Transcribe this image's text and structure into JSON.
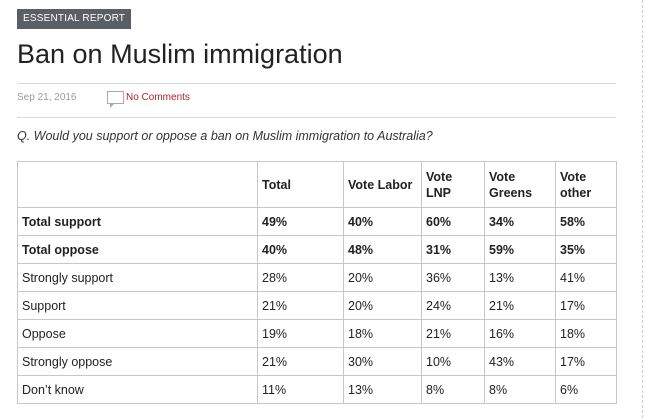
{
  "badge": "ESSENTIAL REPORT",
  "title": "Ban on Muslim immigration",
  "meta": {
    "date": "Sep 21, 2016",
    "comments": "No Comments"
  },
  "question": "Q. Would you support or oppose a ban on Muslim immigration to Australia?",
  "table": {
    "headers": [
      "",
      "Total",
      "Vote Labor",
      "Vote LNP",
      "Vote Greens",
      "Vote other"
    ],
    "rows": [
      {
        "label": "Total support",
        "values": [
          "49%",
          "40%",
          "60%",
          "34%",
          "58%"
        ]
      },
      {
        "label": "Total oppose",
        "values": [
          "40%",
          "48%",
          "31%",
          "59%",
          "35%"
        ]
      },
      {
        "label": "Strongly support",
        "values": [
          "28%",
          "20%",
          "36%",
          "13%",
          "41%"
        ]
      },
      {
        "label": "Support",
        "values": [
          "21%",
          "20%",
          "24%",
          "21%",
          "17%"
        ]
      },
      {
        "label": "Oppose",
        "values": [
          "19%",
          "18%",
          "21%",
          "16%",
          "18%"
        ]
      },
      {
        "label": "Strongly oppose",
        "values": [
          "21%",
          "30%",
          "10%",
          "43%",
          "17%"
        ]
      },
      {
        "label": "Don’t know",
        "values": [
          "11%",
          "13%",
          "8%",
          "8%",
          "6%"
        ]
      }
    ]
  }
}
